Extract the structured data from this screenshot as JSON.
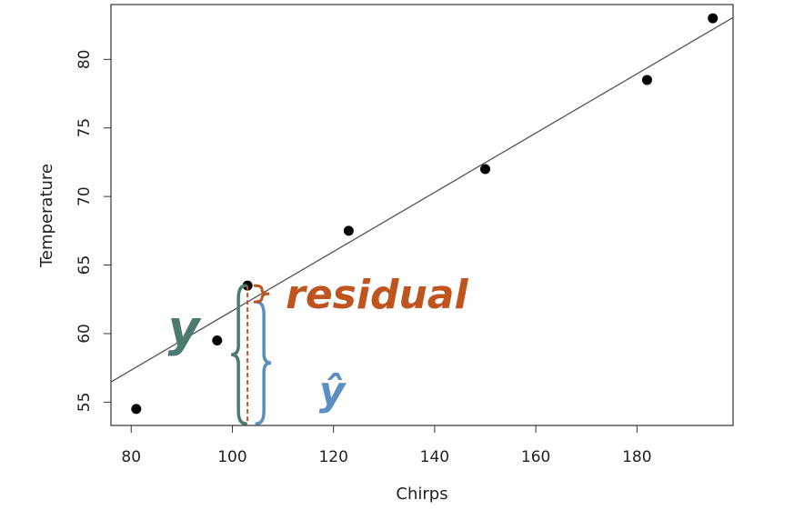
{
  "chart_data": {
    "type": "scatter",
    "xlabel": "Chirps",
    "ylabel": "Temperature",
    "xlim": [
      76,
      199
    ],
    "ylim": [
      53.3,
      84
    ],
    "xticks": [
      80,
      100,
      120,
      140,
      160,
      180
    ],
    "yticks": [
      55,
      60,
      65,
      70,
      75,
      80
    ],
    "grid": false,
    "points": [
      {
        "x": 81,
        "y": 54.5
      },
      {
        "x": 97,
        "y": 59.5
      },
      {
        "x": 103,
        "y": 63.5
      },
      {
        "x": 123,
        "y": 67.5
      },
      {
        "x": 150,
        "y": 72
      },
      {
        "x": 182,
        "y": 78.5
      },
      {
        "x": 195,
        "y": 83
      }
    ],
    "fit_line": {
      "intercept": 40.05,
      "slope": 0.2161
    },
    "annotation_x": 103,
    "annotations": {
      "y_label": "y",
      "yhat_label": "ŷ",
      "residual_label": "residual"
    },
    "colors": {
      "points": "#000000",
      "fit_line": "#555555",
      "y_brace": "#4a7a70",
      "yhat_brace": "#5b8fc2",
      "residual": "#c0541f"
    }
  }
}
